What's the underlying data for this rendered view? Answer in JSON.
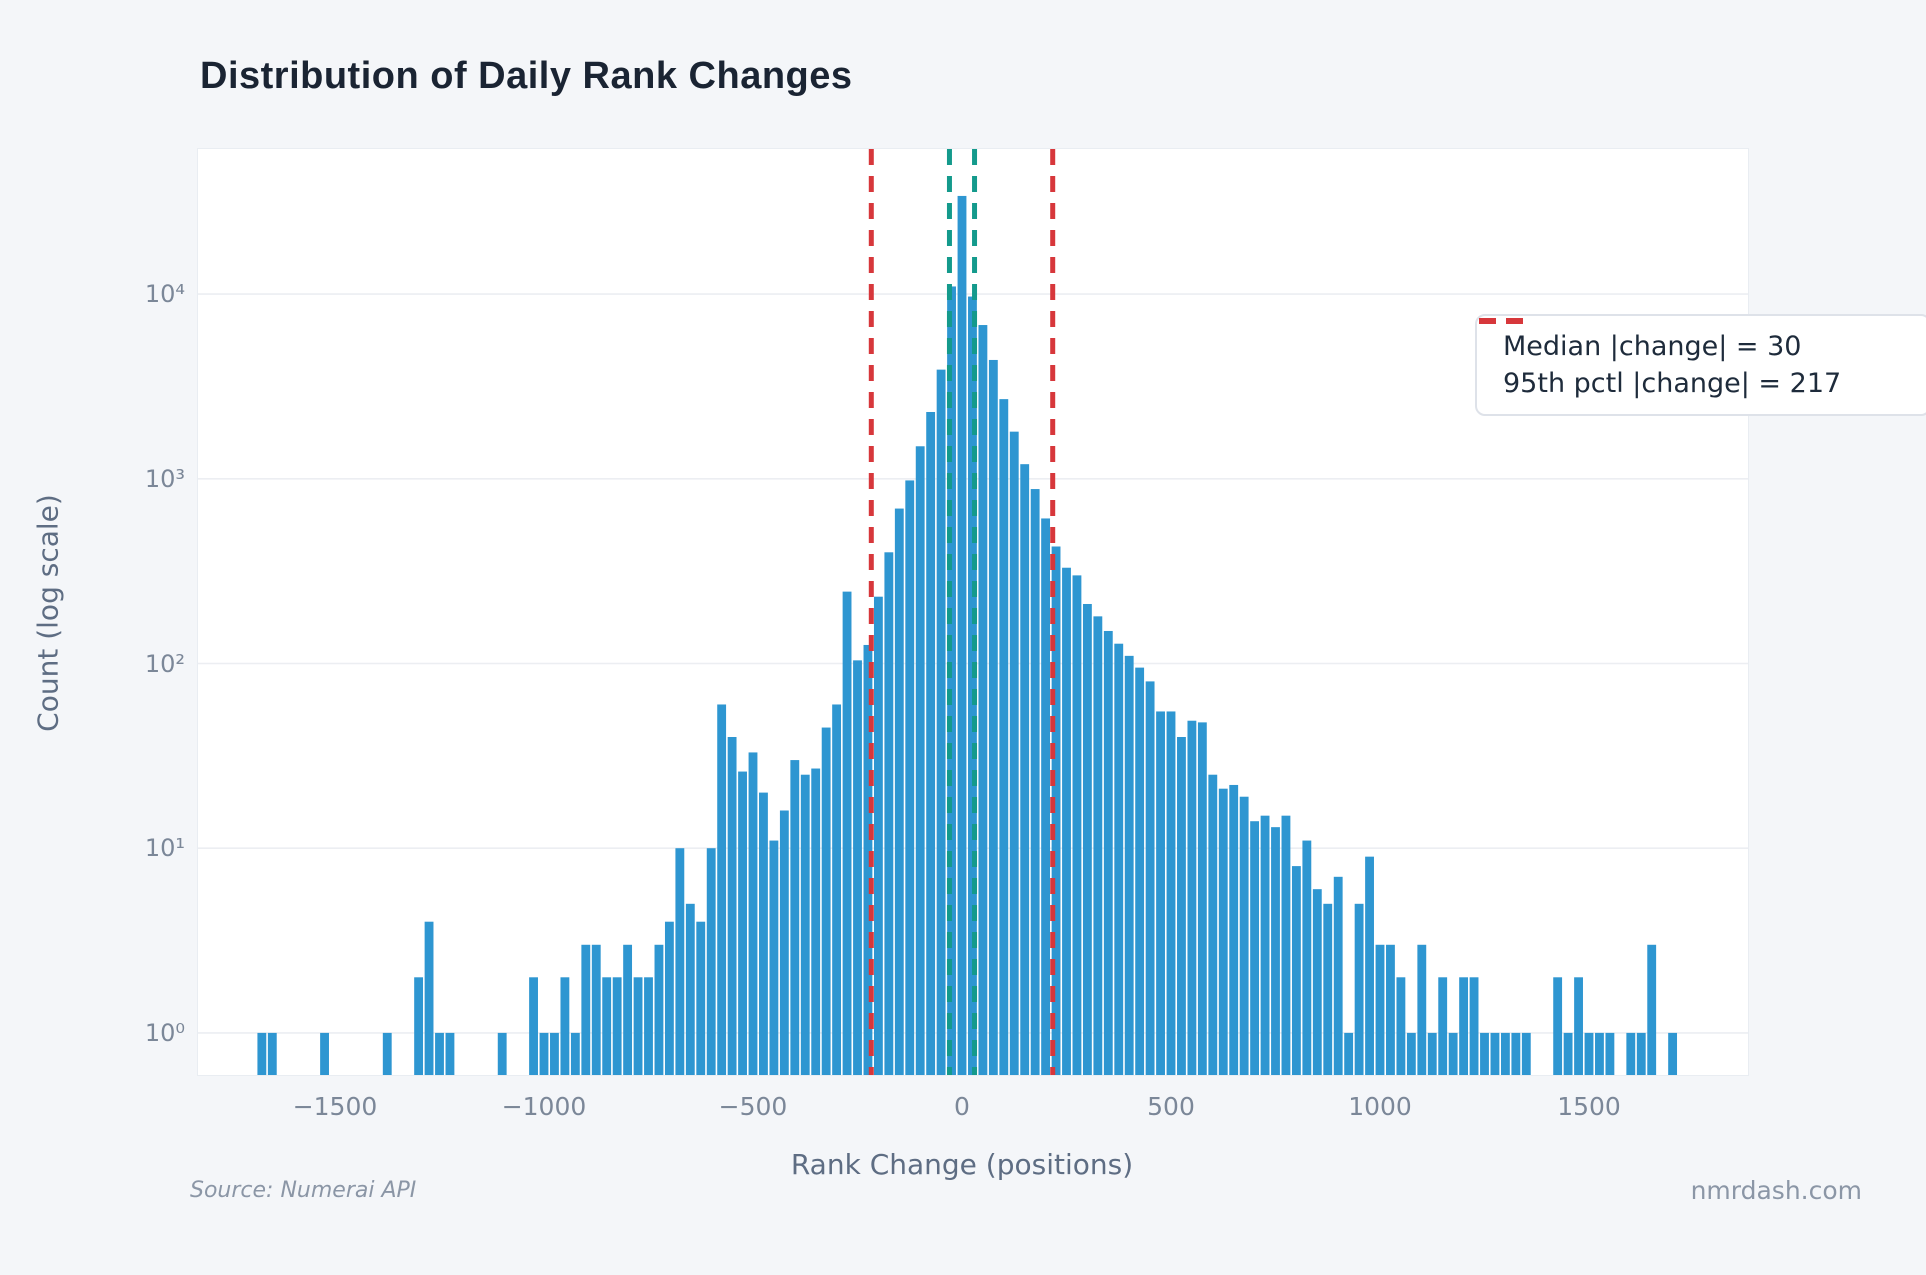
{
  "page": {
    "source_note": "Source: Numerai API",
    "watermark": "nmrdash.com",
    "background": "#F4F6F9"
  },
  "chart_data": {
    "type": "bar",
    "subtype": "histogram",
    "title": "Distribution of Daily Rank Changes",
    "xlabel": "Rank Change (positions)",
    "ylabel": "Count (log scale)",
    "yscale": "log",
    "grid": true,
    "legend_position": "upper right",
    "xlim": [
      -1828,
      1880
    ],
    "ylim": [
      0.59,
      60000
    ],
    "x_ticks": [
      {
        "value": -1500,
        "label": "−1500"
      },
      {
        "value": -1000,
        "label": "−1000"
      },
      {
        "value": -500,
        "label": "−500"
      },
      {
        "value": 0,
        "label": "0"
      },
      {
        "value": 500,
        "label": "500"
      },
      {
        "value": 1000,
        "label": "1000"
      },
      {
        "value": 1500,
        "label": "1500"
      }
    ],
    "y_ticks": [
      {
        "exp": 0,
        "label": "10⁰"
      },
      {
        "exp": 1,
        "label": "10¹"
      },
      {
        "exp": 2,
        "label": "10²"
      },
      {
        "exp": 3,
        "label": "10³"
      },
      {
        "exp": 4,
        "label": "10⁴"
      }
    ],
    "colors": {
      "bars": "#2E96D1",
      "grid": "#ECEEF2",
      "plot_background": "#FFFFFF"
    },
    "legend": [
      {
        "label": "Median |change| = 30",
        "color": "#149A8C",
        "positions": [
          -30,
          30
        ]
      },
      {
        "label": "95th pctl |change| = 217",
        "color": "#D7373B",
        "positions": [
          -217,
          217
        ]
      }
    ],
    "median_abs_change": 30,
    "pct95_abs_change": 217,
    "bins": {
      "start": -1675,
      "step": 25,
      "counts": [
        1,
        1,
        0,
        0,
        0,
        0,
        1,
        0,
        0,
        0,
        0,
        0,
        1,
        0,
        0,
        2,
        4,
        1,
        1,
        0,
        0,
        0,
        0,
        1,
        0,
        0,
        2,
        1,
        1,
        2,
        1,
        3,
        3,
        2,
        2,
        3,
        2,
        2,
        3,
        4,
        10,
        5,
        4,
        10,
        60,
        40,
        26,
        33,
        20,
        11,
        16,
        30,
        25,
        27,
        45,
        60,
        245,
        104,
        126,
        230,
        400,
        690,
        980,
        1500,
        2300,
        3900,
        11000,
        34000,
        9700,
        6800,
        4400,
        2700,
        1800,
        1200,
        880,
        610,
        430,
        330,
        300,
        210,
        180,
        150,
        128,
        110,
        95,
        80,
        55,
        55,
        40,
        49,
        48,
        25,
        21,
        22,
        19,
        14,
        15,
        13,
        15,
        8,
        11,
        6,
        5,
        7,
        1,
        5,
        9,
        3,
        3,
        2,
        1,
        3,
        1,
        2,
        1,
        2,
        2,
        1,
        1,
        1,
        1,
        1,
        0,
        0,
        2,
        1,
        2,
        1,
        1,
        1,
        0,
        1,
        1,
        3,
        0,
        1
      ]
    }
  }
}
